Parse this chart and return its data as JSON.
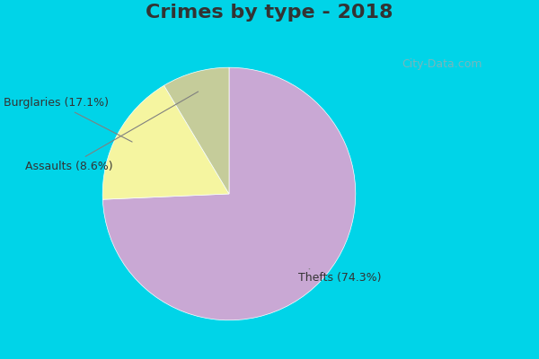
{
  "title": "Crimes by type - 2018",
  "slices": [
    {
      "label": "Thefts",
      "pct": 74.3,
      "color": "#c9a8d4"
    },
    {
      "label": "Burglaries",
      "pct": 17.1,
      "color": "#f5f5a0"
    },
    {
      "label": "Assaults",
      "pct": 8.6,
      "color": "#c5cc9a"
    }
  ],
  "background_top": "#00d4e8",
  "background_main": "#d6ede8",
  "title_fontsize": 16,
  "label_fontsize": 9,
  "watermark": "City-Data.com"
}
